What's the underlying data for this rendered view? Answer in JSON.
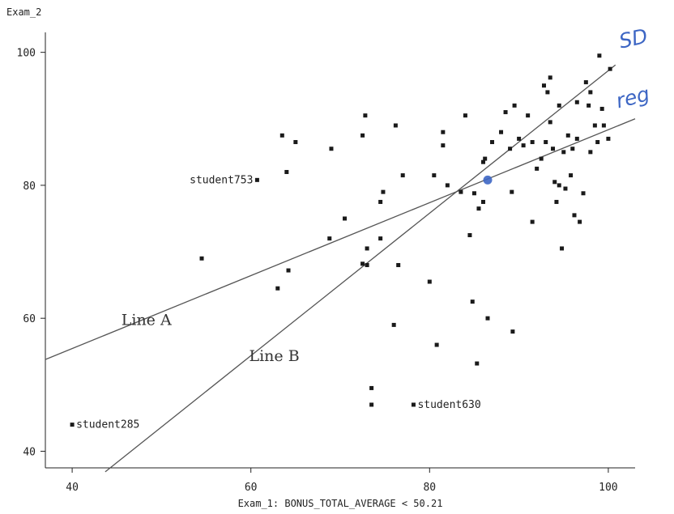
{
  "chart_data": {
    "type": "scatter",
    "title": "",
    "xlabel": "Exam_1: BONUS_TOTAL_AVERAGE < 50.21",
    "ylabel": "Exam_2",
    "xlim": [
      37,
      103
    ],
    "ylim": [
      37.5,
      103
    ],
    "xticks": [
      40,
      60,
      80,
      100
    ],
    "yticks": [
      40,
      60,
      80,
      100
    ],
    "grid": false,
    "points": [
      {
        "x": 54.5,
        "y": 69.0
      },
      {
        "x": 63.0,
        "y": 64.5
      },
      {
        "x": 64.2,
        "y": 67.2
      },
      {
        "x": 63.5,
        "y": 87.5
      },
      {
        "x": 64.0,
        "y": 82.0
      },
      {
        "x": 65.0,
        "y": 86.5
      },
      {
        "x": 68.8,
        "y": 72.0
      },
      {
        "x": 69.0,
        "y": 85.5
      },
      {
        "x": 70.5,
        "y": 75.0
      },
      {
        "x": 72.5,
        "y": 87.5
      },
      {
        "x": 72.8,
        "y": 90.5
      },
      {
        "x": 72.5,
        "y": 68.2
      },
      {
        "x": 73.0,
        "y": 68.0
      },
      {
        "x": 73.5,
        "y": 49.5
      },
      {
        "x": 73.5,
        "y": 47.0
      },
      {
        "x": 74.5,
        "y": 77.5
      },
      {
        "x": 74.5,
        "y": 72.0
      },
      {
        "x": 74.8,
        "y": 79.0
      },
      {
        "x": 73.0,
        "y": 70.5
      },
      {
        "x": 76.2,
        "y": 89.0
      },
      {
        "x": 76.0,
        "y": 59.0
      },
      {
        "x": 76.5,
        "y": 68.0
      },
      {
        "x": 77.0,
        "y": 81.5
      },
      {
        "x": 80.0,
        "y": 65.5
      },
      {
        "x": 80.5,
        "y": 81.5
      },
      {
        "x": 80.8,
        "y": 56.0
      },
      {
        "x": 81.5,
        "y": 88.0
      },
      {
        "x": 81.5,
        "y": 86.0
      },
      {
        "x": 82.0,
        "y": 80.0
      },
      {
        "x": 83.5,
        "y": 79.0
      },
      {
        "x": 84.0,
        "y": 90.5
      },
      {
        "x": 84.5,
        "y": 72.5
      },
      {
        "x": 84.8,
        "y": 62.5
      },
      {
        "x": 85.0,
        "y": 78.8
      },
      {
        "x": 85.3,
        "y": 53.2
      },
      {
        "x": 85.5,
        "y": 76.5
      },
      {
        "x": 86.0,
        "y": 77.5
      },
      {
        "x": 86.0,
        "y": 83.5
      },
      {
        "x": 86.2,
        "y": 84.0
      },
      {
        "x": 86.5,
        "y": 60.0
      },
      {
        "x": 87.0,
        "y": 86.5
      },
      {
        "x": 88.0,
        "y": 88.0
      },
      {
        "x": 88.5,
        "y": 91.0
      },
      {
        "x": 89.0,
        "y": 85.5
      },
      {
        "x": 89.2,
        "y": 79.0
      },
      {
        "x": 89.3,
        "y": 58.0
      },
      {
        "x": 89.5,
        "y": 92.0
      },
      {
        "x": 90.0,
        "y": 87.0
      },
      {
        "x": 90.5,
        "y": 86.0
      },
      {
        "x": 91.0,
        "y": 90.5
      },
      {
        "x": 91.5,
        "y": 86.5
      },
      {
        "x": 91.5,
        "y": 74.5
      },
      {
        "x": 92.0,
        "y": 82.5
      },
      {
        "x": 92.5,
        "y": 84.0
      },
      {
        "x": 92.8,
        "y": 95.0
      },
      {
        "x": 93.0,
        "y": 86.5
      },
      {
        "x": 93.2,
        "y": 94.0
      },
      {
        "x": 93.5,
        "y": 96.2
      },
      {
        "x": 93.5,
        "y": 89.5
      },
      {
        "x": 93.8,
        "y": 85.5
      },
      {
        "x": 94.0,
        "y": 80.5
      },
      {
        "x": 94.2,
        "y": 77.5
      },
      {
        "x": 94.5,
        "y": 92.0
      },
      {
        "x": 94.5,
        "y": 80.0
      },
      {
        "x": 94.8,
        "y": 70.5
      },
      {
        "x": 95.0,
        "y": 85.0
      },
      {
        "x": 95.2,
        "y": 79.5
      },
      {
        "x": 95.5,
        "y": 87.5
      },
      {
        "x": 95.8,
        "y": 81.5
      },
      {
        "x": 96.0,
        "y": 85.5
      },
      {
        "x": 96.2,
        "y": 75.5
      },
      {
        "x": 96.5,
        "y": 92.5
      },
      {
        "x": 96.8,
        "y": 74.5
      },
      {
        "x": 96.5,
        "y": 87.0
      },
      {
        "x": 97.2,
        "y": 78.8
      },
      {
        "x": 97.5,
        "y": 95.5
      },
      {
        "x": 97.8,
        "y": 92.0
      },
      {
        "x": 98.0,
        "y": 85.0
      },
      {
        "x": 98.0,
        "y": 94.0
      },
      {
        "x": 98.5,
        "y": 89.0
      },
      {
        "x": 98.8,
        "y": 86.5
      },
      {
        "x": 99.0,
        "y": 99.5
      },
      {
        "x": 99.3,
        "y": 91.5
      },
      {
        "x": 99.5,
        "y": 89.0
      },
      {
        "x": 100.0,
        "y": 87.0
      },
      {
        "x": 100.2,
        "y": 97.5
      },
      {
        "x": 60.7,
        "y": 80.8
      },
      {
        "x": 78.2,
        "y": 47.0
      },
      {
        "x": 40.0,
        "y": 44.0
      }
    ],
    "point_labels": [
      {
        "text": "student753",
        "x": 60.7,
        "y": 80.8,
        "side": "left"
      },
      {
        "text": "student630",
        "x": 78.2,
        "y": 47.0,
        "side": "right"
      },
      {
        "text": "student285",
        "x": 40.0,
        "y": 44.0,
        "side": "right"
      }
    ],
    "mean_point": {
      "x": 86.5,
      "y": 80.8,
      "color": "#3d66c4"
    },
    "lines": [
      {
        "name": "Line A",
        "x": [
          37,
          103
        ],
        "y": [
          53.8,
          90.0
        ],
        "color": "#555555"
      },
      {
        "name": "Line B",
        "x": [
          43.7,
          100.8
        ],
        "y": [
          36.9,
          98.1
        ],
        "color": "#555555"
      }
    ],
    "line_labels": [
      {
        "text": "Line A",
        "x": 45.5,
        "y": 59.0
      },
      {
        "text": "Line B",
        "x": 59.8,
        "y": 53.6
      }
    ],
    "annotations": [
      {
        "text": "SD",
        "x": 101.4,
        "y": 100.6,
        "rotate": -12,
        "color": "#3d66c4"
      },
      {
        "text": "reg",
        "x": 101.1,
        "y": 91.6,
        "rotate": -14,
        "color": "#3d66c4"
      }
    ]
  }
}
